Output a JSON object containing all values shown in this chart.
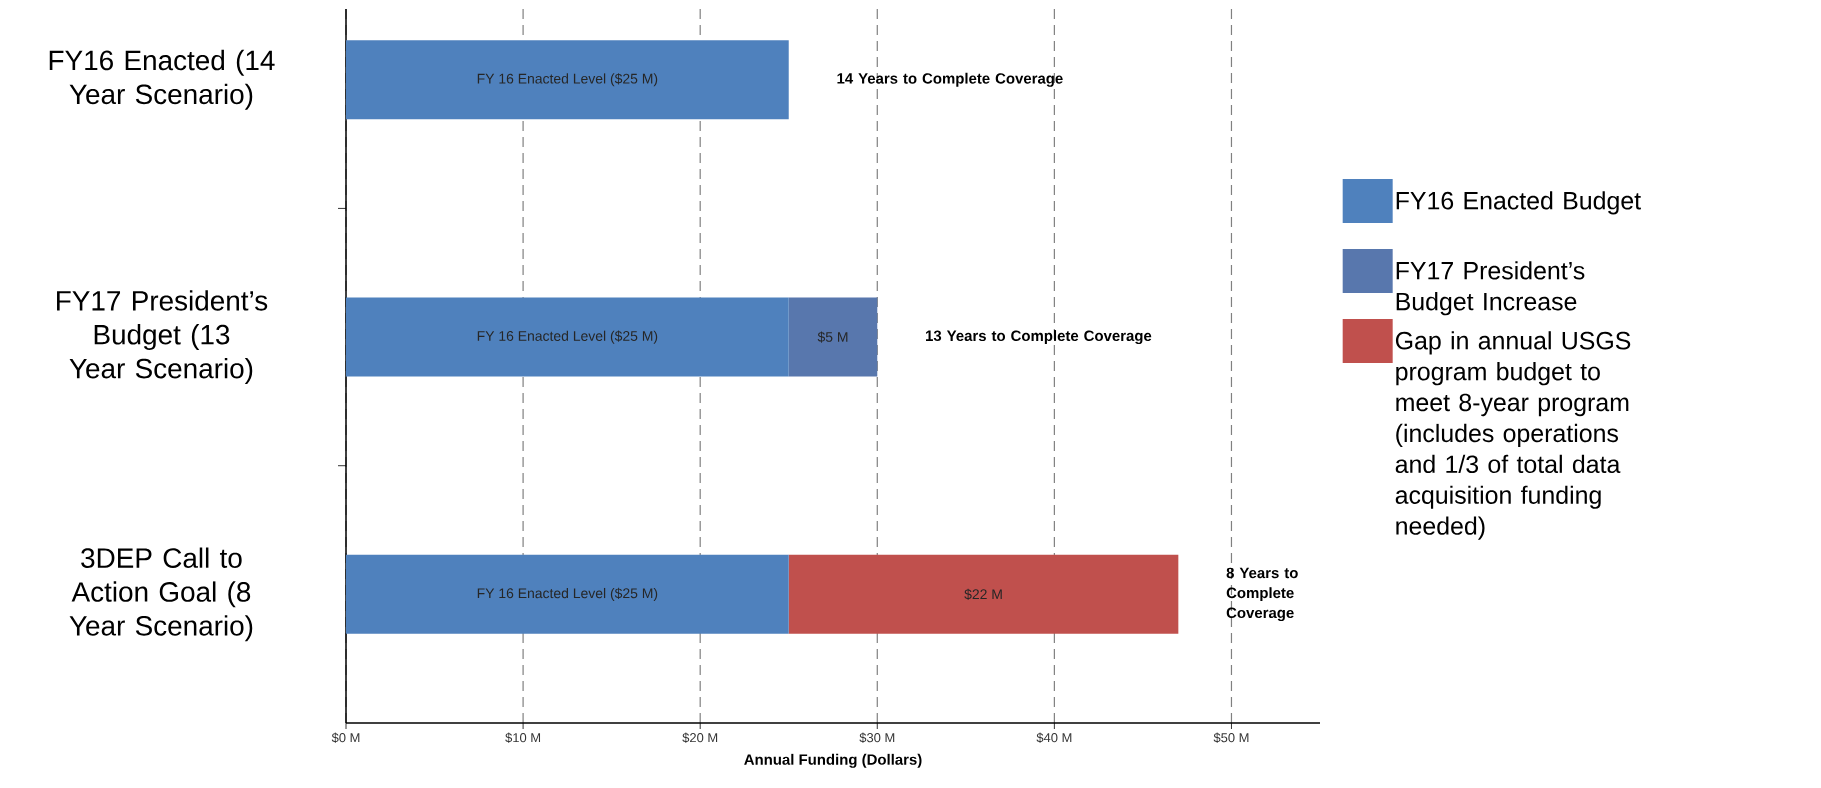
{
  "chart_data": {
    "type": "bar",
    "orientation": "horizontal",
    "stacked": true,
    "categories": [
      "FY16 Enacted (14 Year Scenario)",
      "FY17 President’s Budget (13 Year Scenario)",
      "3DEP Call to Action Goal (8 Year Scenario)"
    ],
    "series": [
      {
        "name": "FY16 Enacted Budget",
        "color": "#4f81bd",
        "values": [
          25,
          25,
          25
        ],
        "value_labels": [
          "FY 16 Enacted Level ($25 M)",
          "FY 16 Enacted Level ($25 M)",
          "FY 16 Enacted Level ($25 M)"
        ]
      },
      {
        "name": "FY17 President’s Budget Increase",
        "color": "#5877ad",
        "values": [
          null,
          5,
          null
        ],
        "value_labels": [
          null,
          "$5 M",
          null
        ]
      },
      {
        "name": "Gap in annual USGS program budget to meet 8-year program (includes operations and 1/3 of total data acquisition funding needed)",
        "color": "#c0504d",
        "values": [
          null,
          null,
          22
        ],
        "value_labels": [
          null,
          null,
          "$22 M"
        ]
      }
    ],
    "xlim": [
      0,
      55
    ],
    "xticks": [
      {
        "value": 0,
        "label": "$0 M"
      },
      {
        "value": 10,
        "label": "$10 M"
      },
      {
        "value": 20,
        "label": "$20 M"
      },
      {
        "value": 30,
        "label": "$30 M"
      },
      {
        "value": 40,
        "label": "$40 M"
      },
      {
        "value": 50,
        "label": "$50 M"
      }
    ],
    "xlabel": "Annual Funding (Dollars)",
    "grid": "x",
    "legend": "right",
    "annotations": [
      "14 Years to Complete Coverage",
      "13 Years to Complete Coverage",
      "8 Years to Complete Coverage"
    ]
  }
}
